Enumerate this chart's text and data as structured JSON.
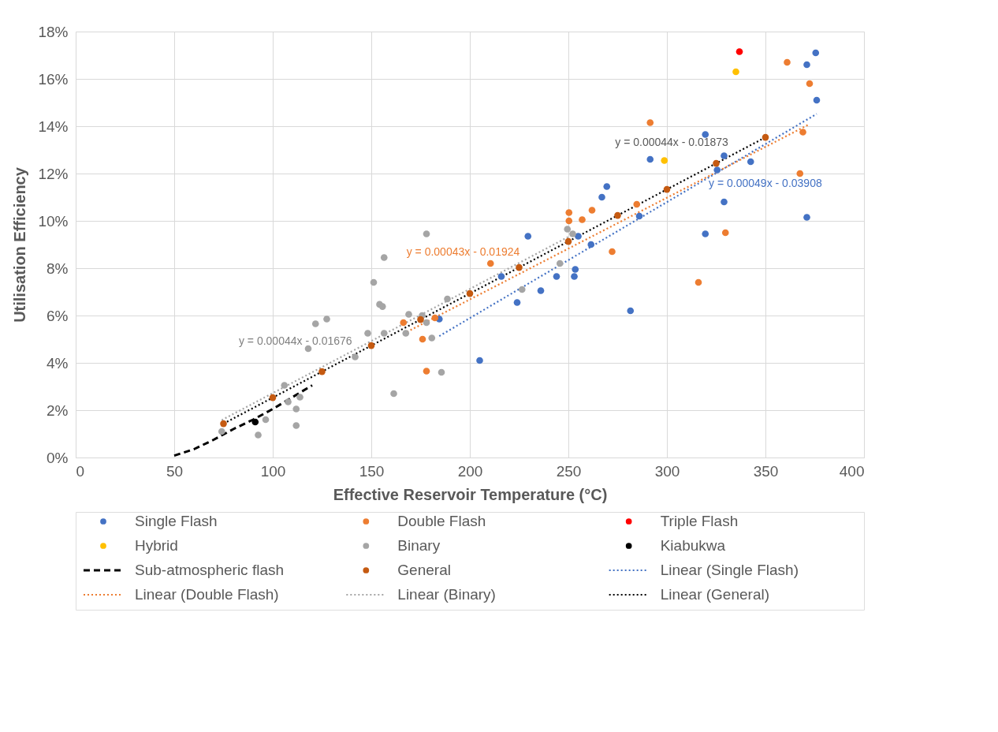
{
  "chart_data": {
    "type": "scatter",
    "xlabel": "Effective Reservoir Temperature (°C)",
    "ylabel": "Utilisation Efficiency",
    "xlim": [
      0,
      400
    ],
    "xticks": [
      0,
      50,
      100,
      150,
      200,
      250,
      300,
      350,
      400
    ],
    "ylim": [
      0,
      18
    ],
    "yticks": [
      {
        "value": 0,
        "label": "0%"
      },
      {
        "value": 2,
        "label": "2%"
      },
      {
        "value": 4,
        "label": "4%"
      },
      {
        "value": 6,
        "label": "6%"
      },
      {
        "value": 8,
        "label": "8%"
      },
      {
        "value": 10,
        "label": "10%"
      },
      {
        "value": 12,
        "label": "12%"
      },
      {
        "value": 14,
        "label": "14%"
      },
      {
        "value": 16,
        "label": "16%"
      },
      {
        "value": 18,
        "label": "18%"
      }
    ],
    "grid": true,
    "legend": "bottom",
    "marker": "circle",
    "series": [
      {
        "name": "Single Flash",
        "color": "#4472c4",
        "x": [
          184.5,
          205,
          216,
          224,
          229.5,
          236,
          244,
          253,
          253.5,
          255,
          261.5,
          267,
          269.5,
          281.5,
          286,
          291.5,
          319.5,
          319.5,
          325.5,
          329,
          329,
          342.5,
          371,
          371,
          375.5,
          376
        ],
        "values": [
          5.85,
          4.1,
          7.65,
          6.55,
          9.35,
          7.05,
          7.65,
          7.65,
          7.95,
          9.35,
          9.0,
          11.0,
          11.45,
          6.2,
          10.2,
          12.6,
          9.45,
          13.65,
          12.15,
          12.75,
          10.8,
          12.5,
          10.15,
          16.6,
          17.1,
          15.1
        ]
      },
      {
        "name": "Double Flash",
        "color": "#ed7d31",
        "x": [
          166.3,
          176,
          178,
          182.3,
          210.5,
          250.3,
          250.3,
          257,
          262,
          272.2,
          284.7,
          291.5,
          316,
          329.7,
          361,
          367.5,
          369,
          372.4
        ],
        "values": [
          5.7,
          5.0,
          3.65,
          5.9,
          8.2,
          10.35,
          10.0,
          10.05,
          10.45,
          8.7,
          10.7,
          14.15,
          7.4,
          9.5,
          16.7,
          12.0,
          13.75,
          15.8
        ]
      },
      {
        "name": "Triple Flash",
        "color": "#ff0000",
        "x": [
          336.8
        ],
        "values": [
          17.15
        ]
      },
      {
        "name": "Hybrid",
        "color": "#ffc000",
        "x": [
          298.7,
          335
        ],
        "values": [
          12.55,
          16.3
        ]
      },
      {
        "name": "Binary",
        "color": "#a5a5a5",
        "x": [
          74.1,
          92.6,
          96.4,
          105.9,
          107.8,
          111.9,
          111.9,
          113.8,
          118,
          121.7,
          127.4,
          141.8,
          148.2,
          151.2,
          154.2,
          155.7,
          156.5,
          156.5,
          161.4,
          167.5,
          169,
          175.8,
          178,
          178,
          180.7,
          185.6,
          188.6,
          226.5,
          245.7,
          249.5,
          252.2
        ],
        "values": [
          1.1,
          0.95,
          1.6,
          3.05,
          2.35,
          2.05,
          1.35,
          2.55,
          4.6,
          5.65,
          5.85,
          4.25,
          5.25,
          7.4,
          6.47,
          6.38,
          8.45,
          5.25,
          2.7,
          5.25,
          6.05,
          6.0,
          9.45,
          5.7,
          5.05,
          3.6,
          6.7,
          7.1,
          8.2,
          9.65,
          9.45
        ]
      },
      {
        "name": "Kiabukwa",
        "color": "#000000",
        "x": [
          91.1
        ],
        "values": [
          1.5
        ]
      },
      {
        "name": "Sub-atmospheric flash",
        "type": "line",
        "marker": "none",
        "line_style": "dashed",
        "color": "#000000",
        "x": [
          50,
          60,
          70,
          80,
          90,
          100,
          110,
          120
        ],
        "values": [
          0.08,
          0.35,
          0.75,
          1.2,
          1.6,
          2.05,
          2.55,
          3.05
        ]
      },
      {
        "name": "General",
        "color": "#c55a11",
        "x": [
          75,
          100,
          125,
          150,
          175,
          200,
          225,
          250,
          275,
          300,
          325,
          350
        ],
        "values": [
          1.43,
          2.53,
          3.63,
          4.73,
          5.83,
          6.93,
          8.03,
          9.13,
          10.23,
          11.33,
          12.43,
          13.53
        ]
      },
      {
        "name": "Linear (Single Flash)",
        "type": "line",
        "marker": "none",
        "line_style": "dotted",
        "color": "#4472c4",
        "x": [
          184.5,
          376
        ],
        "values": [
          5.13,
          14.52
        ]
      },
      {
        "name": "Linear (Double Flash)",
        "type": "line",
        "marker": "none",
        "line_style": "dotted",
        "color": "#ed7d31",
        "x": [
          166.3,
          372.4
        ],
        "values": [
          5.23,
          14.09
        ]
      },
      {
        "name": "Linear (Binary)",
        "type": "line",
        "marker": "none",
        "line_style": "dotted",
        "color": "#a5a5a5",
        "x": [
          74.1,
          252.2
        ],
        "values": [
          1.58,
          9.42
        ]
      },
      {
        "name": "Linear (General)",
        "type": "line",
        "marker": "none",
        "line_style": "dotted",
        "color": "#000000",
        "x": [
          75,
          350
        ],
        "values": [
          1.43,
          13.53
        ]
      }
    ],
    "annotations": [
      "y = 0.00049x - 0.03908",
      "y = 0.00043x - 0.01924",
      "y = 0.00044x - 0.01676",
      "y = 0.00044x - 0.01873"
    ]
  }
}
